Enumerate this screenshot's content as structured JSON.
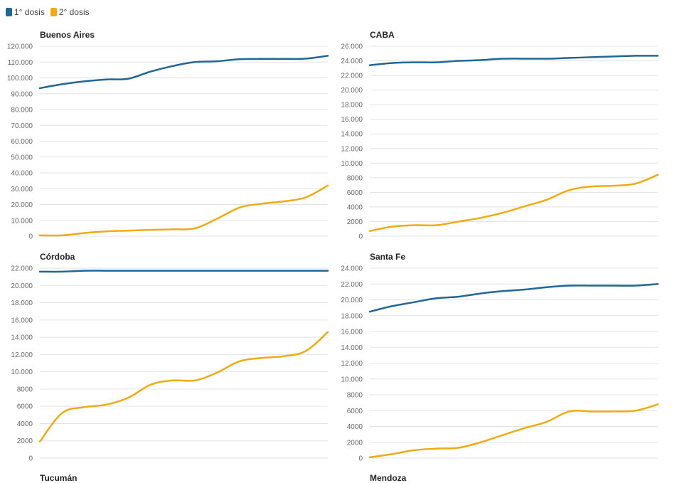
{
  "legend": {
    "items": [
      {
        "label": "1° dosis",
        "color": "#1f6794"
      },
      {
        "label": "2° dosis",
        "color": "#eeab14"
      }
    ]
  },
  "chart_data": [
    {
      "type": "line",
      "title": "Buenos Aires",
      "ylim": [
        0,
        120000
      ],
      "yticks": [
        0,
        10000,
        20000,
        30000,
        40000,
        50000,
        60000,
        70000,
        80000,
        90000,
        100000,
        110000,
        120000
      ],
      "ytick_labels": [
        "0",
        "10.000",
        "20.000",
        "30.000",
        "40.000",
        "50.000",
        "60.000",
        "70.000",
        "80.000",
        "90.000",
        "100.000",
        "110.000",
        "120.000"
      ],
      "x": [
        0,
        1,
        2,
        3,
        4,
        5,
        6,
        7,
        8,
        9,
        10,
        11,
        12,
        13
      ],
      "series": [
        {
          "name": "1° dosis",
          "color": "#1f6794",
          "values": [
            93500,
            96000,
            97800,
            99000,
            99500,
            104000,
            107500,
            110000,
            110500,
            111800,
            112000,
            112000,
            112200,
            114000
          ]
        },
        {
          "name": "2° dosis",
          "color": "#eeab14",
          "values": [
            500,
            500,
            2000,
            3000,
            3500,
            4000,
            4300,
            5000,
            11000,
            18000,
            20500,
            22000,
            24500,
            32000
          ]
        }
      ],
      "grid": true
    },
    {
      "type": "line",
      "title": "CABA",
      "ylim": [
        0,
        26000
      ],
      "yticks": [
        0,
        2000,
        4000,
        6000,
        8000,
        10000,
        12000,
        14000,
        16000,
        18000,
        20000,
        22000,
        24000,
        26000
      ],
      "ytick_labels": [
        "0",
        "2000",
        "4000",
        "6000",
        "8000",
        "10.000",
        "12.000",
        "14.000",
        "16.000",
        "18.000",
        "20.000",
        "22.000",
        "24.000",
        "26.000"
      ],
      "x": [
        0,
        1,
        2,
        3,
        4,
        5,
        6,
        7,
        8,
        9,
        10,
        11,
        12,
        13
      ],
      "series": [
        {
          "name": "1° dosis",
          "color": "#1f6794",
          "values": [
            23400,
            23700,
            23800,
            23800,
            24000,
            24100,
            24300,
            24300,
            24300,
            24400,
            24500,
            24600,
            24700,
            24700
          ]
        },
        {
          "name": "2° dosis",
          "color": "#eeab14",
          "values": [
            700,
            1300,
            1500,
            1500,
            2000,
            2500,
            3200,
            4100,
            5000,
            6300,
            6800,
            6900,
            7200,
            8400
          ]
        }
      ],
      "grid": true
    },
    {
      "type": "line",
      "title": "Córdoba",
      "ylim": [
        0,
        22000
      ],
      "yticks": [
        0,
        2000,
        4000,
        6000,
        8000,
        10000,
        12000,
        14000,
        16000,
        18000,
        20000,
        22000
      ],
      "ytick_labels": [
        "0",
        "2000",
        "4000",
        "6000",
        "8000",
        "10.000",
        "12.000",
        "14.000",
        "16.000",
        "18.000",
        "20.000",
        "22.000"
      ],
      "x": [
        0,
        1,
        2,
        3,
        4,
        5,
        6,
        7,
        8,
        9,
        10,
        11,
        12,
        13
      ],
      "series": [
        {
          "name": "1° dosis",
          "color": "#1f6794",
          "values": [
            21600,
            21600,
            21700,
            21700,
            21700,
            21700,
            21700,
            21700,
            21700,
            21700,
            21700,
            21700,
            21700,
            21700
          ]
        },
        {
          "name": "2° dosis",
          "color": "#eeab14",
          "values": [
            1900,
            5200,
            5900,
            6200,
            7000,
            8500,
            9000,
            9000,
            9900,
            11200,
            11600,
            11800,
            12400,
            14600
          ]
        }
      ],
      "grid": true
    },
    {
      "type": "line",
      "title": "Santa Fe",
      "ylim": [
        0,
        24000
      ],
      "yticks": [
        0,
        2000,
        4000,
        6000,
        8000,
        10000,
        12000,
        14000,
        16000,
        18000,
        20000,
        22000,
        24000
      ],
      "ytick_labels": [
        "0",
        "2000",
        "4000",
        "6000",
        "8000",
        "10.000",
        "12.000",
        "14.000",
        "16.000",
        "18.000",
        "20.000",
        "22.000",
        "24.000"
      ],
      "x": [
        0,
        1,
        2,
        3,
        4,
        5,
        6,
        7,
        8,
        9,
        10,
        11,
        12,
        13
      ],
      "series": [
        {
          "name": "1° dosis",
          "color": "#1f6794",
          "values": [
            18500,
            19200,
            19700,
            20200,
            20400,
            20800,
            21100,
            21300,
            21600,
            21800,
            21800,
            21800,
            21800,
            22000
          ]
        },
        {
          "name": "2° dosis",
          "color": "#eeab14",
          "values": [
            100,
            500,
            1000,
            1200,
            1300,
            2000,
            2900,
            3800,
            4600,
            5900,
            5900,
            5900,
            6000,
            6800
          ]
        }
      ],
      "grid": true
    }
  ],
  "next_panels": [
    "Tucumán",
    "Mendoza"
  ]
}
